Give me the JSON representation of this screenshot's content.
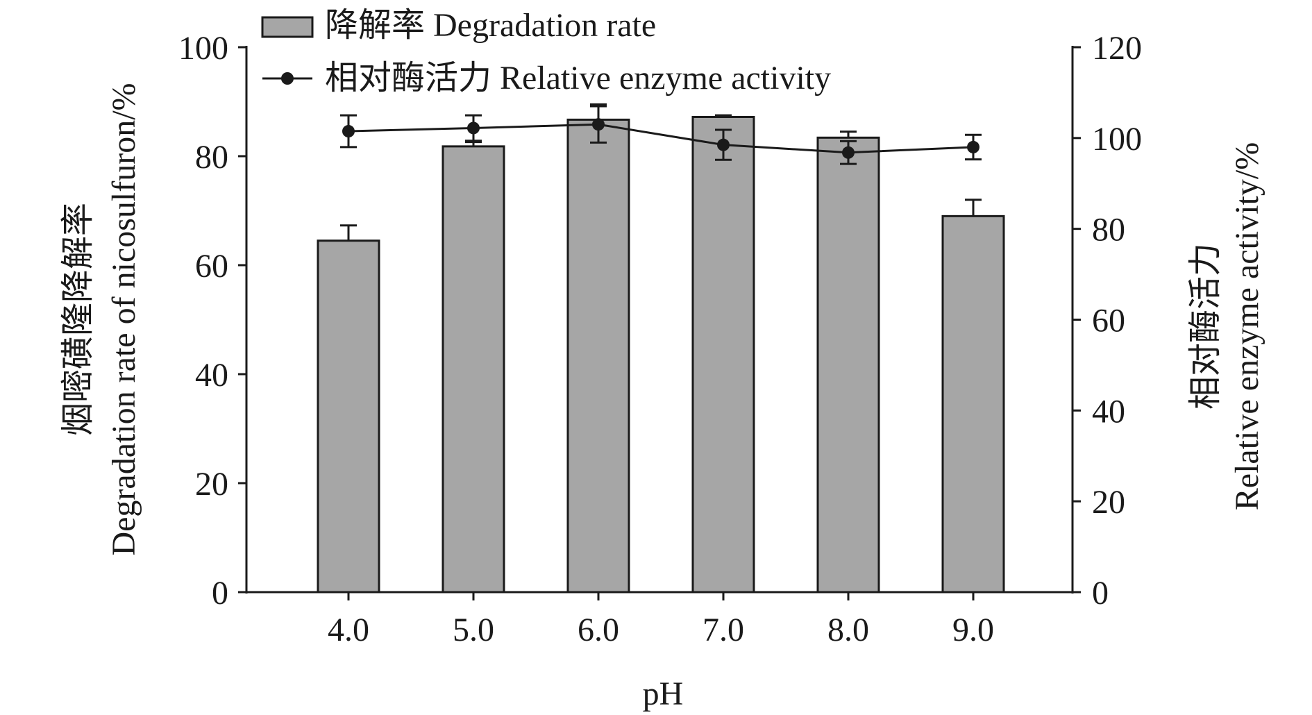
{
  "chart_data": {
    "type": "bar",
    "xlabel": "pH",
    "categories": [
      "4.0",
      "5.0",
      "6.0",
      "7.0",
      "8.0",
      "9.0"
    ],
    "left_axis": {
      "label_cn": "烟嘧磺隆降解率",
      "label_en": "Degradation rate of nicosulfuron/%",
      "ylim": [
        0,
        100
      ],
      "ticks": [
        "0",
        "20",
        "40",
        "60",
        "80",
        "100"
      ]
    },
    "right_axis": {
      "label_cn": "相对酶活力",
      "label_en": "Relative enzyme activity/%",
      "ylim": [
        0,
        120
      ],
      "ticks": [
        "0",
        "20",
        "40",
        "60",
        "80",
        "100",
        "120"
      ]
    },
    "series": [
      {
        "name": "降解率 Degradation rate",
        "kind": "bar",
        "axis": "left",
        "values": [
          64.5,
          81.8,
          86.7,
          87.2,
          83.4,
          69.0
        ],
        "errors": [
          2.8,
          0.8,
          2.8,
          0.3,
          1.1,
          3.0
        ],
        "color": "#a6a6a6"
      },
      {
        "name": "相对酶活力 Relative enzyme activity",
        "kind": "line",
        "axis": "right",
        "values": [
          101.5,
          102.2,
          103.0,
          98.5,
          96.8,
          98.0
        ],
        "errors": [
          3.5,
          2.8,
          4.0,
          3.3,
          2.5,
          2.7
        ],
        "color": "#1a1a1a"
      }
    ],
    "legend": "top-left"
  }
}
